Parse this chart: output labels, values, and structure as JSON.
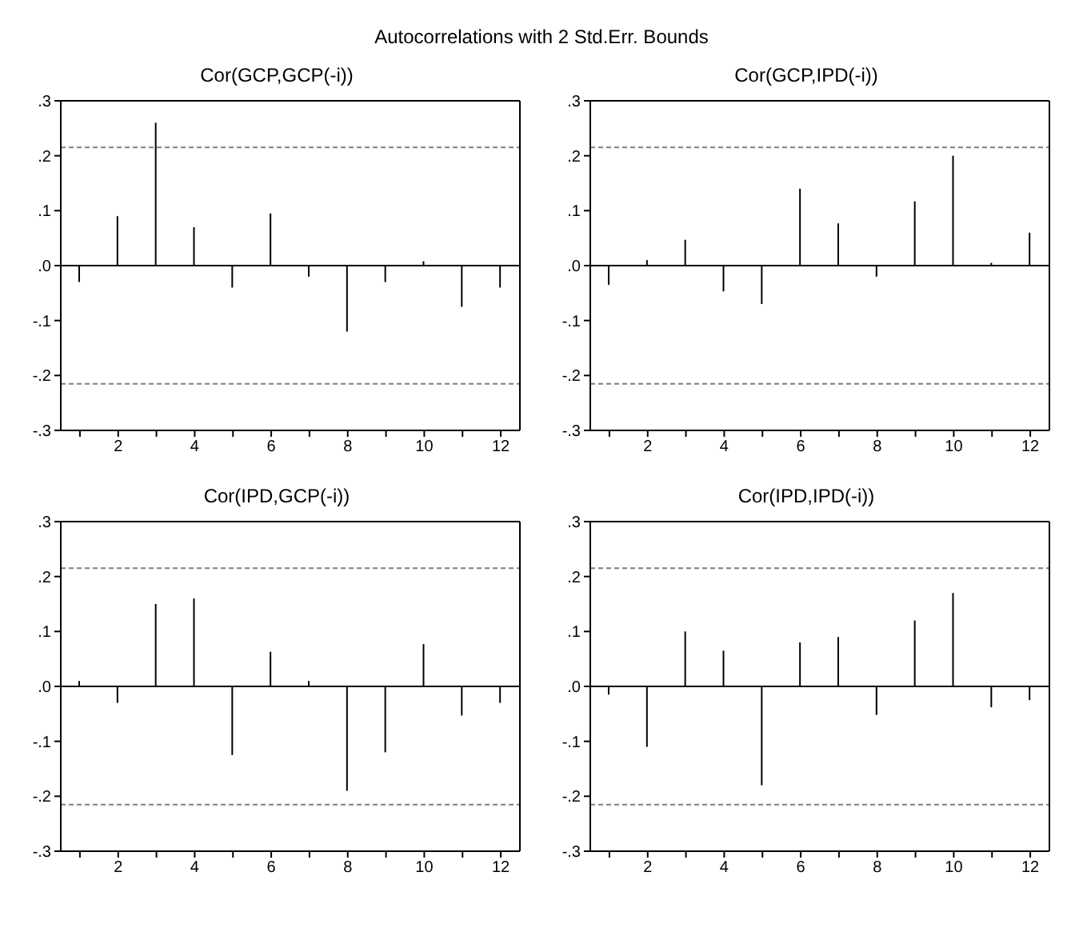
{
  "chart_data": [
    {
      "type": "bar",
      "title": "Cor(GCP,GCP(-i))",
      "annotations": [
        "Autocorrelations with 2 Std.Err. Bounds"
      ],
      "x": [
        1,
        2,
        3,
        4,
        5,
        6,
        7,
        8,
        9,
        10,
        11,
        12
      ],
      "series": [
        {
          "color": "#000000",
          "values": [
            -0.03,
            0.09,
            0.26,
            0.07,
            -0.04,
            0.095,
            -0.02,
            -0.12,
            -0.03,
            0.008,
            -0.075,
            -0.04
          ]
        }
      ],
      "xlim": [
        0.5,
        12.5
      ],
      "xticks": [
        {
          "value": 1,
          "label": null
        },
        2,
        {
          "value": 3,
          "label": null
        },
        4,
        {
          "value": 5,
          "label": null
        },
        6,
        {
          "value": 7,
          "label": null
        },
        8,
        {
          "value": 9,
          "label": null
        },
        10,
        {
          "value": 11,
          "label": null
        },
        12
      ],
      "ylim": [
        -0.3,
        0.3
      ],
      "yticks": [
        {
          "value": -0.3,
          "label": "-.3"
        },
        {
          "value": -0.2,
          "label": "-.2"
        },
        {
          "value": -0.1,
          "label": "-.1"
        },
        {
          "value": 0,
          "label": ".0"
        },
        {
          "value": 0.1,
          "label": ".1"
        },
        {
          "value": 0.2,
          "label": ".2"
        },
        {
          "value": 0.3,
          "label": ".3"
        }
      ],
      "ref_lines": [
        {
          "axis": "y",
          "value": 0.215,
          "line_style": "dashed",
          "color": "#808080"
        },
        {
          "axis": "y",
          "value": -0.215,
          "line_style": "dashed",
          "color": "#808080"
        },
        {
          "axis": "y",
          "value": 0,
          "line_style": "solid",
          "color": "#000000"
        }
      ],
      "grid": false,
      "legend": false
    },
    {
      "type": "bar",
      "title": "Cor(GCP,IPD(-i))",
      "x": [
        1,
        2,
        3,
        4,
        5,
        6,
        7,
        8,
        9,
        10,
        11,
        12
      ],
      "series": [
        {
          "color": "#000000",
          "values": [
            -0.035,
            0.01,
            0.047,
            -0.047,
            -0.07,
            0.14,
            0.077,
            -0.02,
            0.117,
            0.2,
            0.005,
            0.06
          ]
        }
      ],
      "xlim": [
        0.5,
        12.5
      ],
      "xticks": [
        {
          "value": 1,
          "label": null
        },
        2,
        {
          "value": 3,
          "label": null
        },
        4,
        {
          "value": 5,
          "label": null
        },
        6,
        {
          "value": 7,
          "label": null
        },
        8,
        {
          "value": 9,
          "label": null
        },
        10,
        {
          "value": 11,
          "label": null
        },
        12
      ],
      "ylim": [
        -0.3,
        0.3
      ],
      "yticks": [
        {
          "value": -0.3,
          "label": "-.3"
        },
        {
          "value": -0.2,
          "label": "-.2"
        },
        {
          "value": -0.1,
          "label": "-.1"
        },
        {
          "value": 0,
          "label": ".0"
        },
        {
          "value": 0.1,
          "label": ".1"
        },
        {
          "value": 0.2,
          "label": ".2"
        },
        {
          "value": 0.3,
          "label": ".3"
        }
      ],
      "ref_lines": [
        {
          "axis": "y",
          "value": 0.215,
          "line_style": "dashed",
          "color": "#808080"
        },
        {
          "axis": "y",
          "value": -0.215,
          "line_style": "dashed",
          "color": "#808080"
        },
        {
          "axis": "y",
          "value": 0,
          "line_style": "solid",
          "color": "#000000"
        }
      ],
      "grid": false,
      "legend": false
    },
    {
      "type": "bar",
      "title": "Cor(IPD,GCP(-i))",
      "x": [
        1,
        2,
        3,
        4,
        5,
        6,
        7,
        8,
        9,
        10,
        11,
        12
      ],
      "series": [
        {
          "color": "#000000",
          "values": [
            0.01,
            -0.03,
            0.15,
            0.16,
            -0.125,
            0.063,
            0.01,
            -0.19,
            -0.12,
            0.077,
            -0.053,
            -0.03
          ]
        }
      ],
      "xlim": [
        0.5,
        12.5
      ],
      "xticks": [
        {
          "value": 1,
          "label": null
        },
        2,
        {
          "value": 3,
          "label": null
        },
        4,
        {
          "value": 5,
          "label": null
        },
        6,
        {
          "value": 7,
          "label": null
        },
        8,
        {
          "value": 9,
          "label": null
        },
        10,
        {
          "value": 11,
          "label": null
        },
        12
      ],
      "ylim": [
        -0.3,
        0.3
      ],
      "yticks": [
        {
          "value": -0.3,
          "label": "-.3"
        },
        {
          "value": -0.2,
          "label": "-.2"
        },
        {
          "value": -0.1,
          "label": "-.1"
        },
        {
          "value": 0,
          "label": ".0"
        },
        {
          "value": 0.1,
          "label": ".1"
        },
        {
          "value": 0.2,
          "label": ".2"
        },
        {
          "value": 0.3,
          "label": ".3"
        }
      ],
      "ref_lines": [
        {
          "axis": "y",
          "value": 0.215,
          "line_style": "dashed",
          "color": "#808080"
        },
        {
          "axis": "y",
          "value": -0.215,
          "line_style": "dashed",
          "color": "#808080"
        },
        {
          "axis": "y",
          "value": 0,
          "line_style": "solid",
          "color": "#000000"
        }
      ],
      "grid": false,
      "legend": false
    },
    {
      "type": "bar",
      "title": "Cor(IPD,IPD(-i))",
      "x": [
        1,
        2,
        3,
        4,
        5,
        6,
        7,
        8,
        9,
        10,
        11,
        12
      ],
      "series": [
        {
          "color": "#000000",
          "values": [
            -0.015,
            -0.11,
            0.1,
            0.065,
            -0.18,
            0.08,
            0.09,
            -0.052,
            0.12,
            0.17,
            -0.038,
            -0.025
          ]
        }
      ],
      "xlim": [
        0.5,
        12.5
      ],
      "xticks": [
        {
          "value": 1,
          "label": null
        },
        2,
        {
          "value": 3,
          "label": null
        },
        4,
        {
          "value": 5,
          "label": null
        },
        6,
        {
          "value": 7,
          "label": null
        },
        8,
        {
          "value": 9,
          "label": null
        },
        10,
        {
          "value": 11,
          "label": null
        },
        12
      ],
      "ylim": [
        -0.3,
        0.3
      ],
      "yticks": [
        {
          "value": -0.3,
          "label": "-.3"
        },
        {
          "value": -0.2,
          "label": "-.2"
        },
        {
          "value": -0.1,
          "label": "-.1"
        },
        {
          "value": 0,
          "label": ".0"
        },
        {
          "value": 0.1,
          "label": ".1"
        },
        {
          "value": 0.2,
          "label": ".2"
        },
        {
          "value": 0.3,
          "label": ".3"
        }
      ],
      "ref_lines": [
        {
          "axis": "y",
          "value": 0.215,
          "line_style": "dashed",
          "color": "#808080"
        },
        {
          "axis": "y",
          "value": -0.215,
          "line_style": "dashed",
          "color": "#808080"
        },
        {
          "axis": "y",
          "value": 0,
          "line_style": "solid",
          "color": "#000000"
        }
      ],
      "grid": false,
      "legend": false
    }
  ]
}
